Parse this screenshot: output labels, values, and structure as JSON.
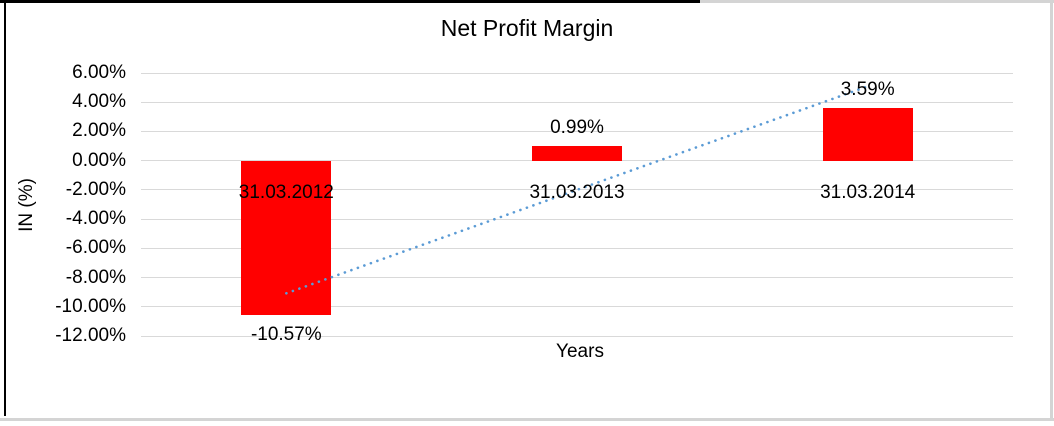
{
  "chart_data": {
    "type": "bar",
    "title": "Net Profit Margin",
    "xlabel": "Years",
    "ylabel": "IN (%)",
    "categories": [
      "31.03.2012",
      "31.03.2013",
      "31.03.2014"
    ],
    "series": [
      {
        "name": "Net Profit Margin",
        "values": [
          -10.57,
          0.99,
          3.59
        ]
      }
    ],
    "data_labels": [
      "-10.57%",
      "0.99%",
      "3.59%"
    ],
    "yticks": [
      {
        "value": 6,
        "label": "6.00%"
      },
      {
        "value": 4,
        "label": "4.00%"
      },
      {
        "value": 2,
        "label": "2.00%"
      },
      {
        "value": 0,
        "label": "0.00%"
      },
      {
        "value": -2,
        "label": "-2.00%"
      },
      {
        "value": -4,
        "label": "-4.00%"
      },
      {
        "value": -6,
        "label": "-6.00%"
      },
      {
        "value": -8,
        "label": "-8.00%"
      },
      {
        "value": -10,
        "label": "-10.00%"
      },
      {
        "value": -12,
        "label": "-12.00%"
      }
    ],
    "ylim": [
      -12,
      6
    ],
    "grid": true,
    "legend": "none",
    "bar_color": "#ff0000",
    "trendline": {
      "type": "linear",
      "style": "dotted",
      "color": "#5b9bd5"
    }
  },
  "colors": {
    "gridline": "#d9d9d9",
    "text": "#000000",
    "frame_black": "#000000",
    "frame_gray": "#d4d4d4",
    "background": "#ffffff"
  }
}
